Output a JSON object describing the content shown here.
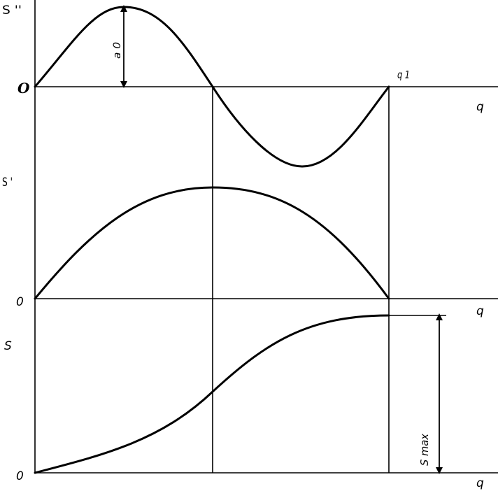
{
  "labels": {
    "s_second": "S ''",
    "s_first": "S '",
    "s": "S",
    "origin_top": "O",
    "origin_mid": "0",
    "origin_bottom": "0",
    "q_top": "q",
    "q_mid": "q",
    "q_bottom": "q",
    "q1": "q 1",
    "a0": "a 0",
    "smax": "S max"
  }
}
